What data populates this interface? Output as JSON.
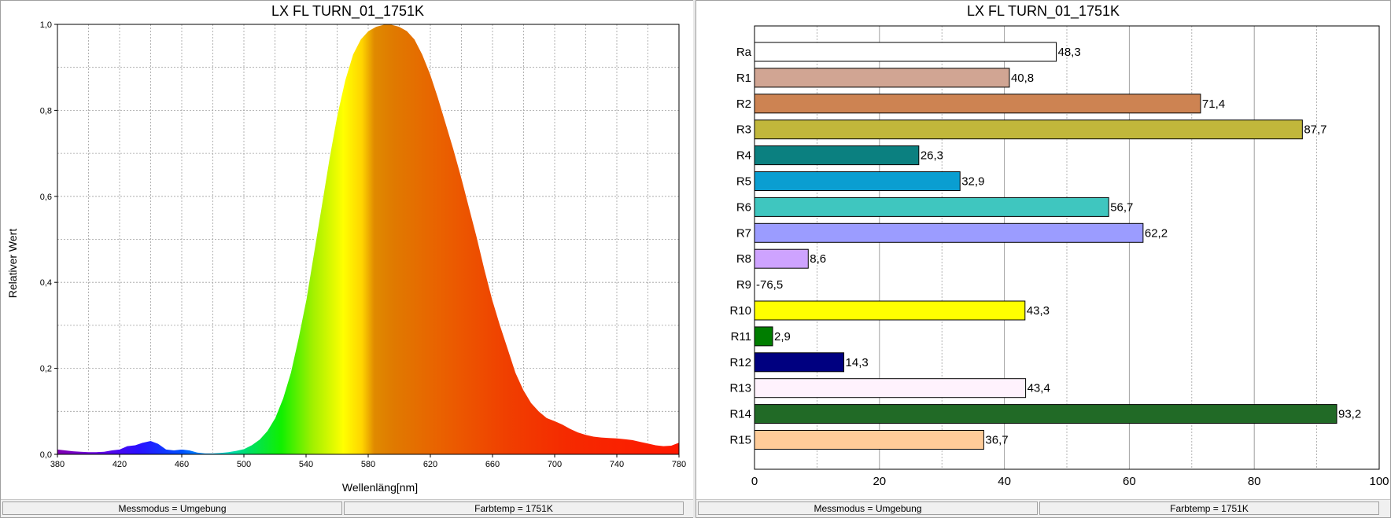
{
  "status": {
    "mode": "Messmodus = Umgebung",
    "colortemp": "Farbtemp = 1751K"
  },
  "colors": {
    "curve_outline": "#ffffff",
    "grid": "#a0a0a0",
    "bar_outline": "#000000"
  },
  "chart_data": [
    {
      "type": "area",
      "title": "LX FL TURN_01_1751K",
      "xlabel": "Wellenläng[nm]",
      "ylabel": "Relativer Wert",
      "xlim": [
        380,
        780
      ],
      "ylim": [
        0,
        1
      ],
      "grid": true,
      "fill": "visible-spectrum gradient",
      "x_ticks": [
        "380",
        "420",
        "460",
        "500",
        "540",
        "580",
        "620",
        "660",
        "700",
        "740",
        "780"
      ],
      "y_ticks": [
        "0,0",
        "0,2",
        "0,4",
        "0,6",
        "0,8",
        "1,0"
      ],
      "x": [
        380,
        385,
        390,
        395,
        400,
        405,
        410,
        415,
        420,
        425,
        430,
        435,
        440,
        445,
        450,
        455,
        460,
        465,
        470,
        475,
        480,
        485,
        490,
        495,
        500,
        505,
        510,
        515,
        520,
        525,
        530,
        535,
        540,
        545,
        550,
        555,
        560,
        565,
        570,
        575,
        580,
        585,
        590,
        595,
        600,
        605,
        610,
        615,
        620,
        625,
        630,
        635,
        640,
        645,
        650,
        655,
        660,
        665,
        670,
        675,
        680,
        685,
        690,
        695,
        700,
        705,
        710,
        715,
        720,
        725,
        730,
        735,
        740,
        745,
        750,
        755,
        760,
        765,
        770,
        775,
        780
      ],
      "y": [
        0.012,
        0.01,
        0.008,
        0.007,
        0.006,
        0.006,
        0.007,
        0.01,
        0.012,
        0.02,
        0.022,
        0.028,
        0.032,
        0.025,
        0.012,
        0.01,
        0.012,
        0.01,
        0.005,
        0.003,
        0.003,
        0.004,
        0.006,
        0.009,
        0.013,
        0.022,
        0.035,
        0.055,
        0.085,
        0.13,
        0.19,
        0.27,
        0.36,
        0.47,
        0.58,
        0.69,
        0.79,
        0.87,
        0.93,
        0.965,
        0.985,
        0.995,
        1.0,
        1.0,
        0.995,
        0.985,
        0.965,
        0.93,
        0.885,
        0.83,
        0.77,
        0.71,
        0.645,
        0.575,
        0.505,
        0.43,
        0.36,
        0.3,
        0.245,
        0.19,
        0.15,
        0.12,
        0.1,
        0.085,
        0.078,
        0.07,
        0.06,
        0.052,
        0.046,
        0.042,
        0.04,
        0.039,
        0.038,
        0.036,
        0.034,
        0.03,
        0.026,
        0.022,
        0.02,
        0.021,
        0.028
      ]
    },
    {
      "type": "bar",
      "orientation": "horizontal",
      "title": "LX FL TURN_01_1751K",
      "xlim": [
        0,
        100
      ],
      "x_ticks": [
        "0",
        "20",
        "40",
        "60",
        "80",
        "100"
      ],
      "grid": true,
      "categories": [
        "Ra",
        "R1",
        "R2",
        "R3",
        "R4",
        "R5",
        "R6",
        "R7",
        "R8",
        "R9",
        "R10",
        "R11",
        "R12",
        "R13",
        "R14",
        "R15"
      ],
      "values": [
        48.3,
        40.8,
        71.4,
        87.7,
        26.3,
        32.9,
        56.7,
        62.2,
        8.6,
        -76.5,
        43.3,
        2.9,
        14.3,
        43.4,
        93.2,
        36.7
      ],
      "value_labels": [
        "48,3",
        "40,8",
        "71,4",
        "87,7",
        "26,3",
        "32,9",
        "56,7",
        "62,2",
        "8,6",
        "-76,5",
        "43,3",
        "2,9",
        "14,3",
        "43,4",
        "93,2",
        "36,7"
      ],
      "bar_colors": [
        "#ffffff",
        "#d1a593",
        "#cd8352",
        "#c1b73b",
        "#0b8080",
        "#0a9ed1",
        "#3fc6bf",
        "#9b9cff",
        "#cea3ff",
        "#ff0000",
        "#ffff00",
        "#007d00",
        "#000080",
        "#fff2fd",
        "#216a26",
        "#ffcc99"
      ]
    }
  ]
}
